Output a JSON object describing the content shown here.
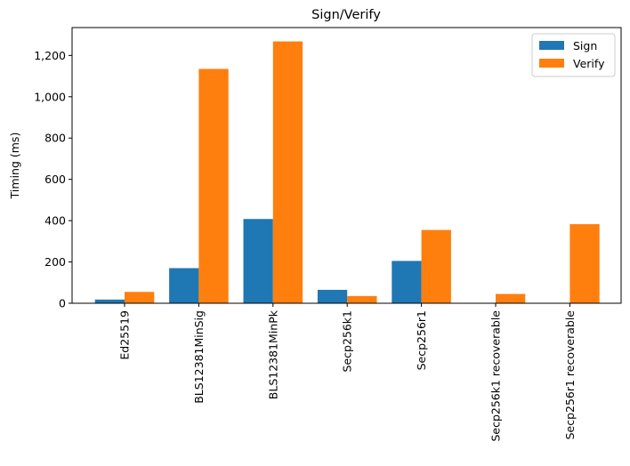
{
  "chart_data": {
    "type": "bar",
    "title": "Sign/Verify",
    "xlabel": "",
    "ylabel": "Timing (ms)",
    "categories": [
      "Ed25519",
      "BLS12381MinSig",
      "BLS12381MinPk",
      "Secp256k1",
      "Secp256r1",
      "Secp256k1 recoverable",
      "Secp256r1 recoverable"
    ],
    "series": [
      {
        "name": "Sign",
        "color": "#1f77b4",
        "values": [
          18,
          170,
          408,
          65,
          205,
          0,
          0
        ]
      },
      {
        "name": "Verify",
        "color": "#ff7f0e",
        "values": [
          55,
          1135,
          1268,
          35,
          355,
          45,
          383
        ]
      }
    ],
    "ylim": [
      0,
      1335
    ],
    "yticks": [
      0,
      200,
      400,
      600,
      800,
      1000,
      1200
    ],
    "ytick_labels": [
      "0",
      "200",
      "400",
      "600",
      "800",
      "1,000",
      "1,200"
    ],
    "grid": false,
    "legend": {
      "position": "top-right",
      "labels": [
        "Sign",
        "Verify"
      ]
    }
  }
}
